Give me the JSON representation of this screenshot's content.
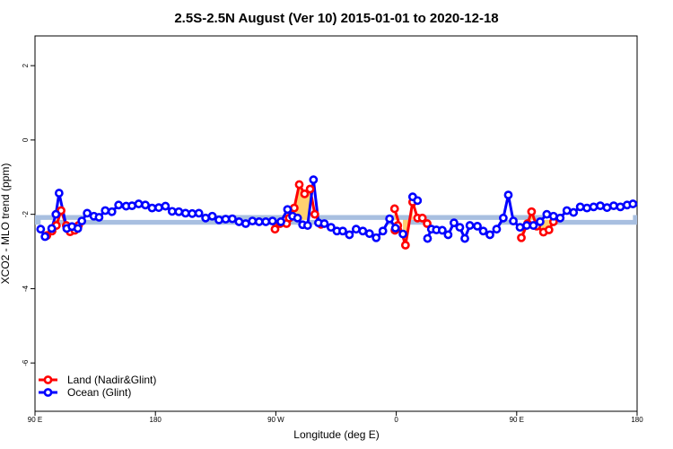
{
  "chart_data": {
    "type": "line",
    "title": "2.5S-2.5N August (Ver 10)   2015-01-01 to 2020-12-18",
    "xlabel": "Longitude (deg E)",
    "ylabel": "XCO2 - MLO trend (ppm)",
    "xlim": [
      90,
      450
    ],
    "ylim": [
      -7.3,
      2.8
    ],
    "x_ticks": [
      {
        "value": 90,
        "label": "90 E"
      },
      {
        "value": 162,
        "label": "180"
      },
      {
        "value": 234,
        "label": "90 W"
      },
      {
        "value": 306,
        "label": "0"
      },
      {
        "value": 378,
        "label": "90 E"
      },
      {
        "value": 450,
        "label": "180"
      }
    ],
    "y_ticks": [
      {
        "value": 2,
        "label": "2"
      },
      {
        "value": 0,
        "label": "0"
      },
      {
        "value": -2,
        "label": "-2"
      },
      {
        "value": -4,
        "label": "-4"
      },
      {
        "value": -6,
        "label": "-6"
      }
    ],
    "band": {
      "lower": -2.28,
      "upper": -2.02,
      "color": "#a8bfe0"
    },
    "series": [
      {
        "name": "Land (Nadir&Glint)",
        "color": "#ff0000",
        "fill_color": "#ffd070",
        "segments": [
          [
            [
              97.1,
              -2.57
            ],
            [
              100.2,
              -2.45
            ],
            [
              102.8,
              -2.3
            ],
            [
              105.6,
              -1.9
            ],
            [
              108.7,
              -2.3
            ],
            [
              111.0,
              -2.47
            ],
            [
              113.8,
              -2.43
            ],
            [
              116.0,
              -2.3
            ]
          ],
          [
            [
              233.5,
              -2.4
            ],
            [
              236.5,
              -2.25
            ],
            [
              240.4,
              -2.25
            ],
            [
              242.0,
              -2.1
            ],
            [
              245.0,
              -1.83
            ],
            [
              248.0,
              -1.2
            ],
            [
              251.2,
              -1.45
            ],
            [
              254.5,
              -1.32
            ],
            [
              257.3,
              -2.0
            ],
            [
              261.0,
              -2.27
            ]
          ],
          [
            [
              305.2,
              -2.43
            ],
            [
              306.9,
              -2.3
            ]
          ],
          [
            [
              305.0,
              -1.85
            ],
            [
              311.5,
              -2.83
            ],
            [
              315.8,
              -1.67
            ],
            [
              318.7,
              -2.1
            ],
            [
              321.6,
              -2.1
            ],
            [
              324.5,
              -2.25
            ]
          ],
          [
            [
              380.8,
              -2.63
            ],
            [
              384.5,
              -2.25
            ],
            [
              386.9,
              -1.93
            ],
            [
              390.0,
              -2.32
            ],
            [
              394.0,
              -2.48
            ],
            [
              397.3,
              -2.42
            ],
            [
              400.0,
              -2.2
            ]
          ]
        ]
      },
      {
        "name": "Ocean (Glint)",
        "color": "#0000ff",
        "fill_color": "#ffffff",
        "segments": [
          [
            [
              93.4,
              -2.4
            ],
            [
              96.0,
              -2.6
            ],
            [
              100.0,
              -2.38
            ],
            [
              102.5,
              -2.0
            ],
            [
              104.4,
              -1.43
            ],
            [
              109.0,
              -2.38
            ],
            [
              112.1,
              -2.33
            ],
            [
              115.6,
              -2.38
            ],
            [
              118.0,
              -2.18
            ],
            [
              121.2,
              -1.97
            ],
            [
              125.2,
              -2.05
            ],
            [
              128.3,
              -2.08
            ],
            [
              132.0,
              -1.9
            ],
            [
              136.0,
              -1.93
            ],
            [
              140.0,
              -1.75
            ],
            [
              144.5,
              -1.78
            ],
            [
              148.0,
              -1.77
            ],
            [
              152.0,
              -1.72
            ],
            [
              156.0,
              -1.75
            ],
            [
              160.0,
              -1.83
            ],
            [
              164.0,
              -1.82
            ],
            [
              168.0,
              -1.78
            ],
            [
              172.0,
              -1.92
            ],
            [
              176.0,
              -1.93
            ],
            [
              180.0,
              -1.97
            ],
            [
              184.0,
              -1.98
            ],
            [
              188.0,
              -1.97
            ],
            [
              192.0,
              -2.1
            ],
            [
              196.0,
              -2.05
            ],
            [
              200.0,
              -2.15
            ],
            [
              204.0,
              -2.13
            ],
            [
              208.0,
              -2.12
            ],
            [
              212.0,
              -2.2
            ],
            [
              216.0,
              -2.25
            ],
            [
              220.0,
              -2.18
            ],
            [
              224.0,
              -2.2
            ],
            [
              228.0,
              -2.2
            ],
            [
              232.0,
              -2.18
            ],
            [
              237.0,
              -2.2
            ],
            [
              241.0,
              -1.87
            ],
            [
              244.0,
              -2.05
            ],
            [
              247.0,
              -2.1
            ],
            [
              250.0,
              -2.28
            ],
            [
              253.0,
              -2.3
            ],
            [
              256.5,
              -1.07
            ],
            [
              259.5,
              -2.23
            ],
            [
              263.0,
              -2.25
            ],
            [
              267.0,
              -2.35
            ],
            [
              270.5,
              -2.45
            ],
            [
              274.0,
              -2.45
            ],
            [
              278.0,
              -2.55
            ],
            [
              282.0,
              -2.4
            ],
            [
              286.0,
              -2.45
            ],
            [
              290.0,
              -2.52
            ],
            [
              294.0,
              -2.63
            ],
            [
              298.0,
              -2.45
            ],
            [
              302.0,
              -2.12
            ],
            [
              305.5,
              -2.37
            ],
            [
              310.0,
              -2.53
            ]
          ],
          [
            [
              315.8,
              -1.53
            ],
            [
              318.7,
              -1.63
            ]
          ],
          [
            [
              324.7,
              -2.65
            ],
            [
              327.0,
              -2.4
            ],
            [
              330.0,
              -2.42
            ],
            [
              333.5,
              -2.43
            ],
            [
              337.0,
              -2.55
            ],
            [
              340.5,
              -2.23
            ],
            [
              344.0,
              -2.35
            ],
            [
              347.0,
              -2.65
            ],
            [
              350.0,
              -2.3
            ],
            [
              354.5,
              -2.32
            ],
            [
              358.0,
              -2.45
            ],
            [
              362.0,
              -2.55
            ],
            [
              366.0,
              -2.4
            ],
            [
              370.0,
              -2.1
            ],
            [
              373.0,
              -1.48
            ],
            [
              376.0,
              -2.18
            ],
            [
              380.0,
              -2.35
            ],
            [
              384.0,
              -2.3
            ],
            [
              388.0,
              -2.3
            ],
            [
              392.0,
              -2.2
            ],
            [
              396.0,
              -2.0
            ],
            [
              400.0,
              -2.05
            ],
            [
              404.0,
              -2.1
            ],
            [
              408.0,
              -1.9
            ],
            [
              412.0,
              -1.95
            ],
            [
              416.0,
              -1.8
            ],
            [
              420.0,
              -1.83
            ],
            [
              424.0,
              -1.8
            ],
            [
              428.0,
              -1.77
            ],
            [
              432.0,
              -1.82
            ],
            [
              436.0,
              -1.77
            ],
            [
              440.0,
              -1.8
            ],
            [
              444.0,
              -1.75
            ],
            [
              447.5,
              -1.72
            ]
          ]
        ]
      }
    ],
    "legend": {
      "position": "bottom-left",
      "entries": [
        "Land (Nadir&Glint)",
        "Ocean (Glint)"
      ]
    }
  }
}
